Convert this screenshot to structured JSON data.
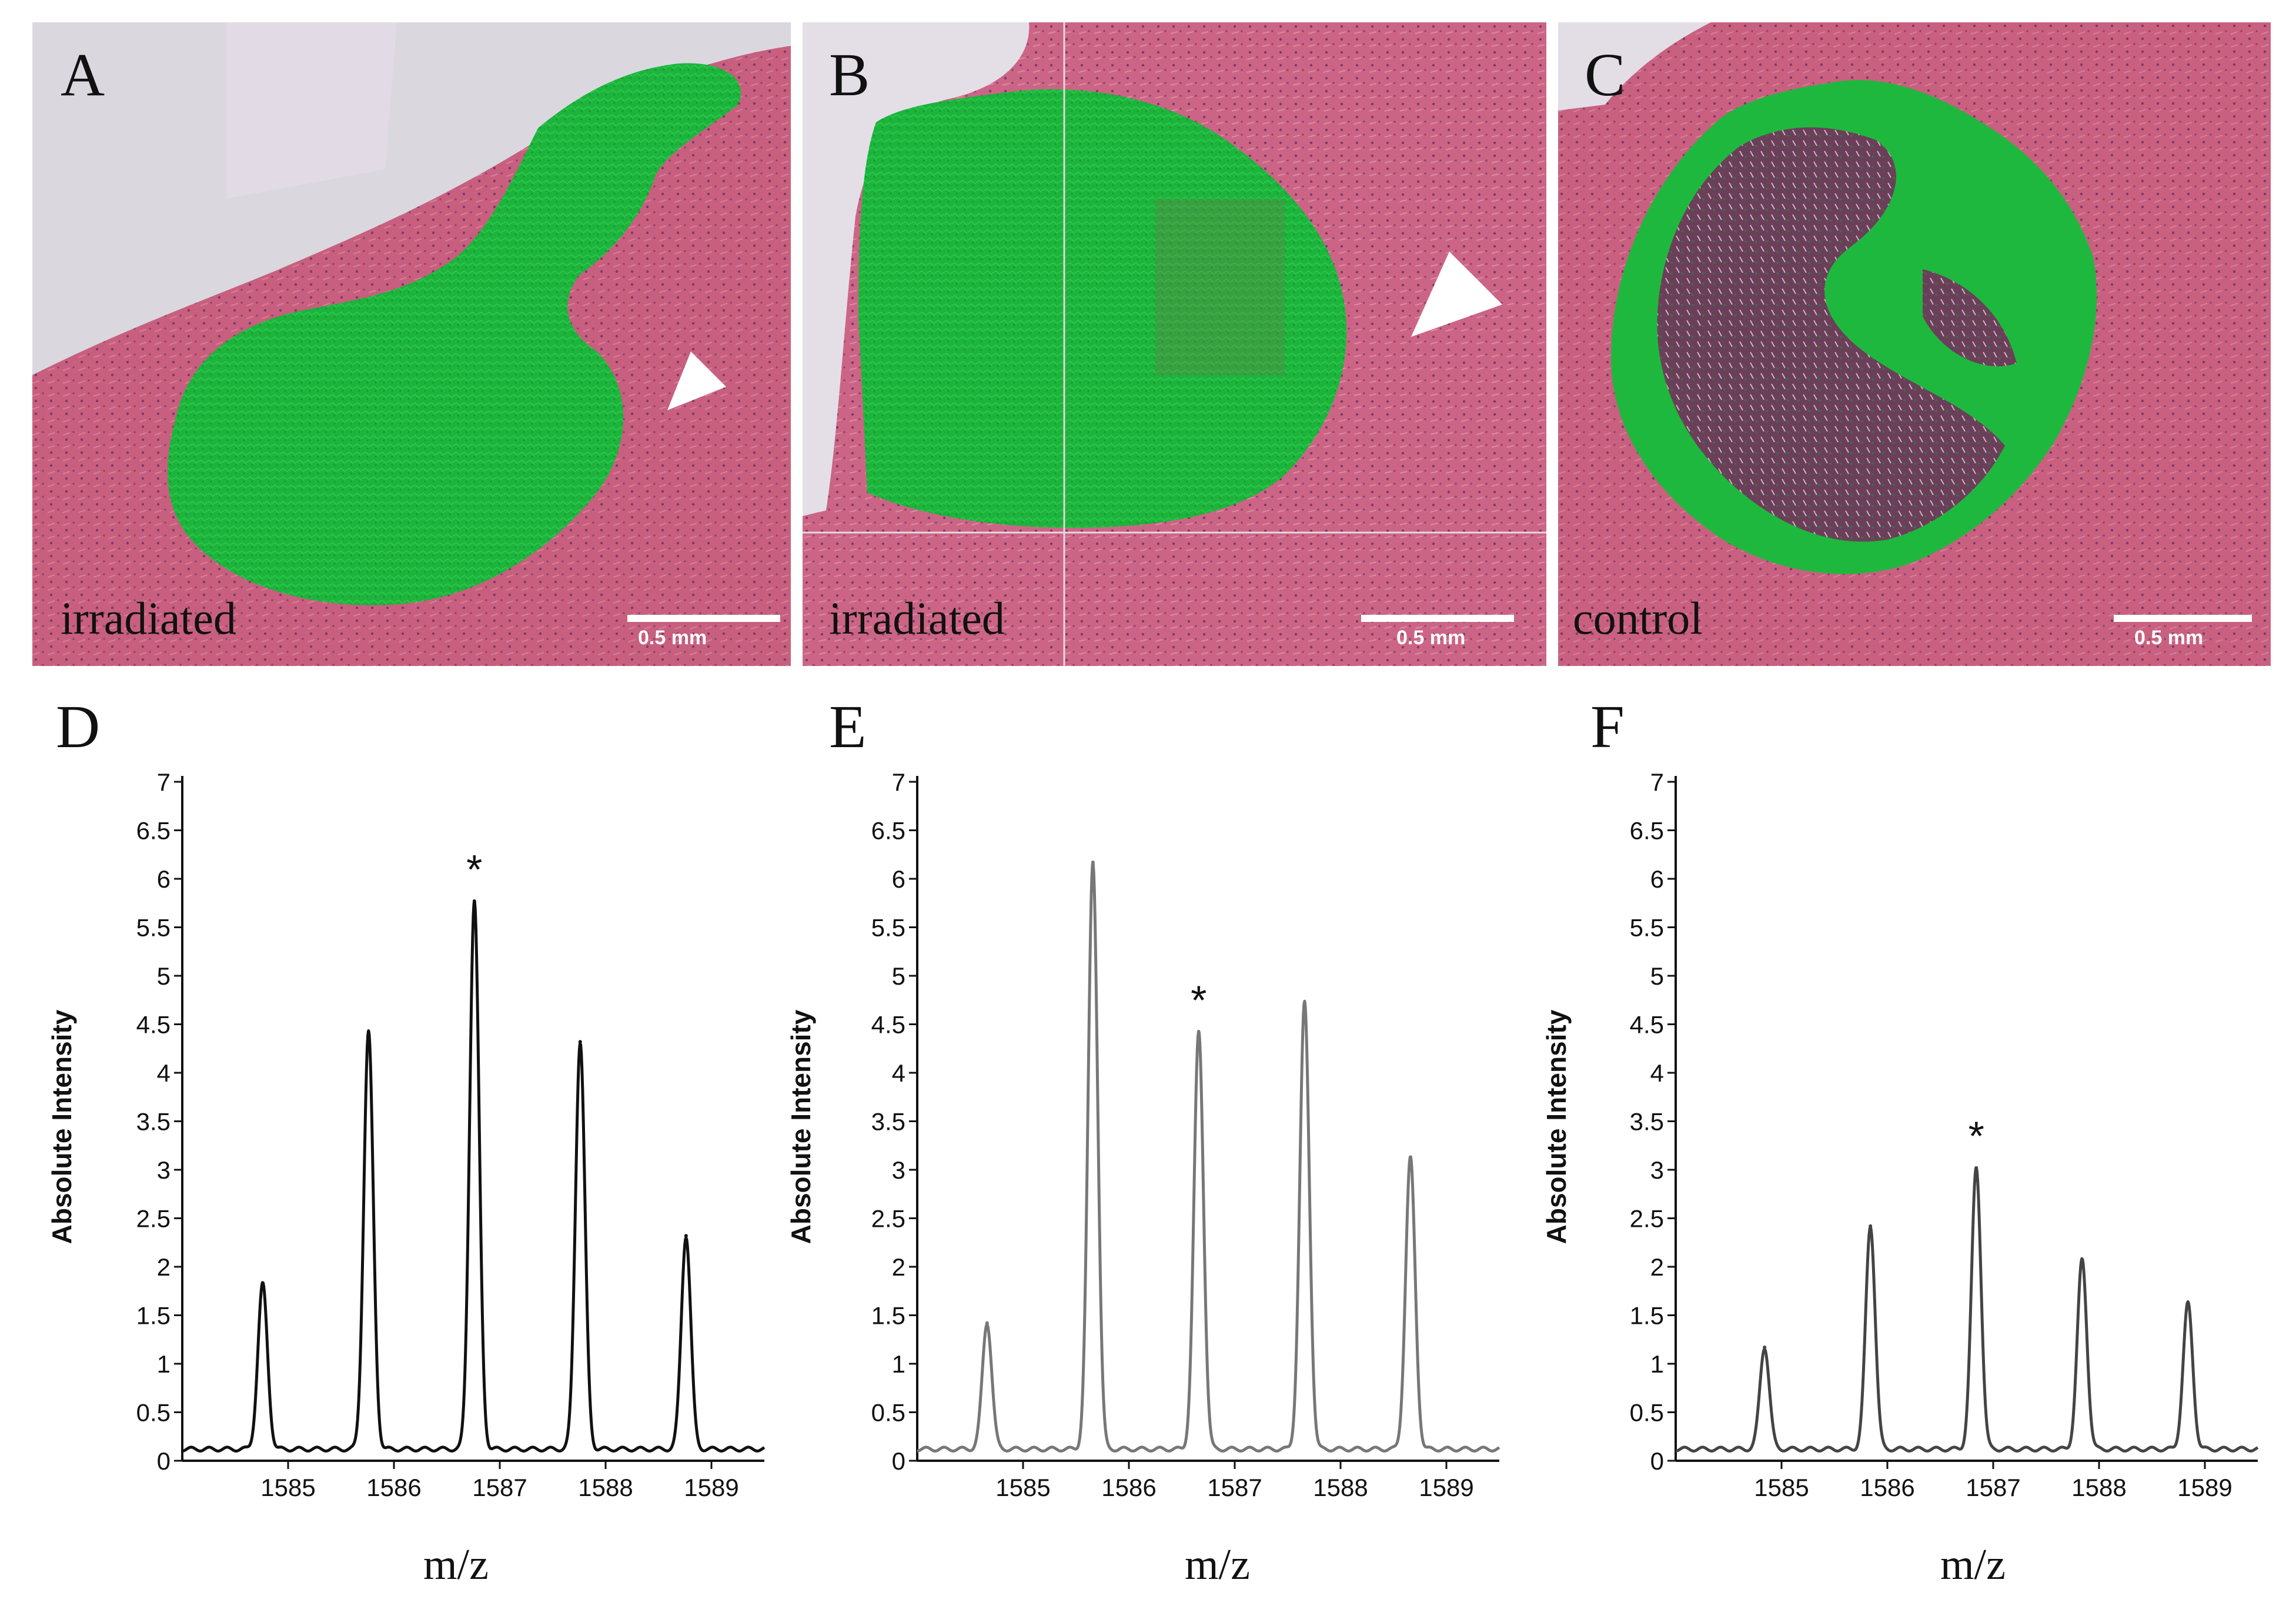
{
  "panels": [
    {
      "letter": "A",
      "condition": "irradiated",
      "scale_bar": "0.5 mm"
    },
    {
      "letter": "B",
      "condition": "irradiated",
      "scale_bar": "0.5 mm"
    },
    {
      "letter": "C",
      "condition": "control",
      "scale_bar": "0.5 mm"
    }
  ],
  "colors": {
    "tissue": "#c9607f",
    "signal": "#1fb83e",
    "line_D": "#111111",
    "line_E": "#777777",
    "line_F": "#444444"
  },
  "chart_data": [
    {
      "panel": "D",
      "type": "line",
      "ylabel": "Absolute Intensity",
      "xlabel": "m/z",
      "ylim": [
        0,
        7
      ],
      "xlim": [
        1584.0,
        1589.5
      ],
      "yticks": [
        "0",
        "0.5",
        "1",
        "1.5",
        "2",
        "2.5",
        "3",
        "3.5",
        "4",
        "4.5",
        "5",
        "5.5",
        "6",
        "6.5",
        "7"
      ],
      "xticks": [
        "1585",
        "1586",
        "1587",
        "1588",
        "1589"
      ],
      "peaks": [
        {
          "mz": 1584.76,
          "intensity": 1.7
        },
        {
          "mz": 1585.76,
          "intensity": 4.3
        },
        {
          "mz": 1586.76,
          "intensity": 5.65,
          "starred": true
        },
        {
          "mz": 1587.76,
          "intensity": 4.2
        },
        {
          "mz": 1588.76,
          "intensity": 2.2
        }
      ],
      "marker": "*"
    },
    {
      "panel": "E",
      "type": "line",
      "ylabel": "Absolute Intensity",
      "xlabel": "m/z",
      "ylim": [
        0,
        7
      ],
      "xlim": [
        1584.0,
        1589.5
      ],
      "yticks": [
        "0",
        "0.5",
        "1",
        "1.5",
        "2",
        "2.5",
        "3",
        "3.5",
        "4",
        "4.5",
        "5",
        "5.5",
        "6",
        "6.5",
        "7"
      ],
      "xticks": [
        "1585",
        "1586",
        "1587",
        "1588",
        "1589"
      ],
      "peaks": [
        {
          "mz": 1584.66,
          "intensity": 1.3
        },
        {
          "mz": 1585.66,
          "intensity": 6.05
        },
        {
          "mz": 1586.66,
          "intensity": 4.3,
          "starred": true
        },
        {
          "mz": 1587.66,
          "intensity": 4.6
        },
        {
          "mz": 1588.66,
          "intensity": 3.0
        }
      ],
      "marker": "*"
    },
    {
      "panel": "F",
      "type": "line",
      "ylabel": "Absolute Intensity",
      "xlabel": "m/z",
      "ylim": [
        0,
        7
      ],
      "xlim": [
        1584.0,
        1589.5
      ],
      "yticks": [
        "0",
        "0.5",
        "1",
        "1.5",
        "2",
        "2.5",
        "3",
        "3.5",
        "4",
        "4.5",
        "5",
        "5.5",
        "6",
        "6.5",
        "7"
      ],
      "xticks": [
        "1585",
        "1586",
        "1587",
        "1588",
        "1589"
      ],
      "peaks": [
        {
          "mz": 1584.84,
          "intensity": 1.05
        },
        {
          "mz": 1585.84,
          "intensity": 2.3
        },
        {
          "mz": 1586.84,
          "intensity": 2.9,
          "starred": true
        },
        {
          "mz": 1587.84,
          "intensity": 1.95
        },
        {
          "mz": 1588.84,
          "intensity": 1.5
        }
      ],
      "marker": "*"
    }
  ]
}
